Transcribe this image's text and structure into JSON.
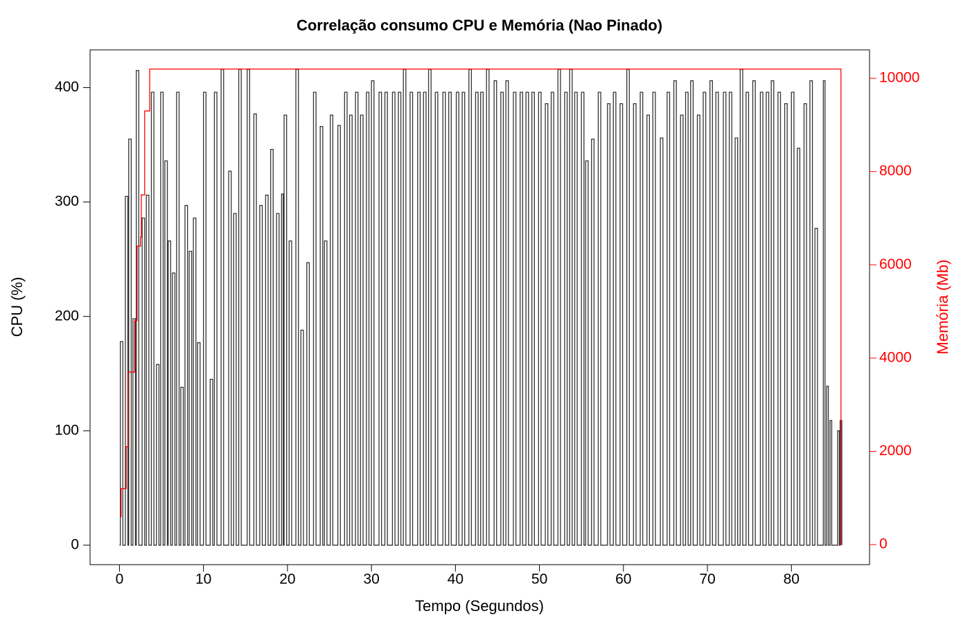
{
  "chart_data": {
    "type": "line",
    "title": "Correlação consumo CPU e Memória (Nao Pinado)",
    "xlabel": "Tempo (Segundos)",
    "ylabel": "CPU (%)",
    "y2label": "Memória (Mb)",
    "xlim": [
      -3.5,
      89.3
    ],
    "ylim": [
      -17,
      433
    ],
    "y2lim": [
      -430,
      10610
    ],
    "xticks": [
      0,
      10,
      20,
      30,
      40,
      50,
      60,
      70,
      80
    ],
    "yticks": [
      0,
      100,
      200,
      300,
      400
    ],
    "y2ticks": [
      0,
      2000,
      4000,
      6000,
      8000,
      10000
    ],
    "step": true,
    "series": [
      {
        "name": "CPU",
        "color": "#333333",
        "axis": "y",
        "x": [
          0,
          0.1,
          0.4,
          0.7,
          1.0,
          1.1,
          1.4,
          1.6,
          1.9,
          2.0,
          2.3,
          2.7,
          3.0,
          3.2,
          3.5,
          3.8,
          4.1,
          4.4,
          4.7,
          4.9,
          5.2,
          5.4,
          5.7,
          5.8,
          6.1,
          6.3,
          6.6,
          6.8,
          7.1,
          7.3,
          7.6,
          7.8,
          8.1,
          8.3,
          8.6,
          8.8,
          9.1,
          9.3,
          9.6,
          10.0,
          10.3,
          10.8,
          11.1,
          11.3,
          11.6,
          12.1,
          12.4,
          13.0,
          13.3,
          13.6,
          13.9,
          14.2,
          14.5,
          15.2,
          15.5,
          16.0,
          16.3,
          16.7,
          17.0,
          17.4,
          17.7,
          18.0,
          18.3,
          18.7,
          19.0,
          19.3,
          19.5,
          19.6,
          19.9,
          20.2,
          20.5,
          21.0,
          21.3,
          21.6,
          21.9,
          22.3,
          22.6,
          23.1,
          23.4,
          23.9,
          24.2,
          24.4,
          24.7,
          25.1,
          25.4,
          26.0,
          26.3,
          26.8,
          27.1,
          27.4,
          27.7,
          28.1,
          28.4,
          28.7,
          29.0,
          29.4,
          29.7,
          30.0,
          30.3,
          30.9,
          31.2,
          31.6,
          31.9,
          32.5,
          32.8,
          33.2,
          33.5,
          33.8,
          34.1,
          34.6,
          34.9,
          35.5,
          35.8,
          36.2,
          36.5,
          36.8,
          37.1,
          37.6,
          37.9,
          38.5,
          38.8,
          39.2,
          39.5,
          40.1,
          40.4,
          40.8,
          41.1,
          41.6,
          41.9,
          42.4,
          42.7,
          43.0,
          43.3,
          43.7,
          44.0,
          44.6,
          44.9,
          45.4,
          45.7,
          46.0,
          46.3,
          46.9,
          47.2,
          47.7,
          48.0,
          48.4,
          48.7,
          49.1,
          49.4,
          49.9,
          50.2,
          50.7,
          51.0,
          51.4,
          51.7,
          52.2,
          52.5,
          53.0,
          53.3,
          53.6,
          53.9,
          54.2,
          54.5,
          55.0,
          55.3,
          55.5,
          55.8,
          56.2,
          56.5,
          57.0,
          57.3,
          58.1,
          58.4,
          58.8,
          59.1,
          59.6,
          59.9,
          60.4,
          60.7,
          61.2,
          61.5,
          62.0,
          62.3,
          62.8,
          63.1,
          63.5,
          63.8,
          64.4,
          64.7,
          65.2,
          65.5,
          66.0,
          66.3,
          66.8,
          67.1,
          67.4,
          67.7,
          68.0,
          68.3,
          68.8,
          69.1,
          69.5,
          69.8,
          70.3,
          70.6,
          71.0,
          71.3,
          71.9,
          72.2,
          72.6,
          72.9,
          73.3,
          73.6,
          73.9,
          74.2,
          74.6,
          74.9,
          75.4,
          75.7,
          76.3,
          76.6,
          77.0,
          77.3,
          77.6,
          77.9,
          78.4,
          78.7,
          79.2,
          79.5,
          80.0,
          80.3,
          80.7,
          81.0,
          81.5,
          81.8,
          82.2,
          82.5,
          82.8,
          83.1,
          83.8,
          84.0,
          84.2,
          84.4,
          84.6,
          84.8,
          85.5,
          85.7,
          85.8,
          86.0
        ],
        "values": [
          0,
          178,
          0,
          305,
          0,
          355,
          0,
          198,
          0,
          415,
          0,
          286,
          0,
          306,
          0,
          396,
          0,
          158,
          0,
          396,
          0,
          336,
          0,
          266,
          0,
          238,
          0,
          396,
          0,
          138,
          0,
          297,
          0,
          257,
          0,
          286,
          0,
          177,
          0,
          396,
          0,
          145,
          0,
          396,
          0,
          416,
          0,
          327,
          0,
          290,
          0,
          416,
          0,
          416,
          0,
          377,
          0,
          297,
          0,
          306,
          0,
          346,
          0,
          290,
          0,
          307,
          0,
          376,
          0,
          266,
          0,
          416,
          0,
          188,
          0,
          247,
          0,
          396,
          0,
          366,
          0,
          266,
          0,
          376,
          0,
          367,
          0,
          396,
          0,
          376,
          0,
          396,
          0,
          376,
          0,
          396,
          0,
          406,
          0,
          396,
          0,
          396,
          0,
          396,
          0,
          396,
          0,
          416,
          0,
          396,
          0,
          396,
          0,
          396,
          0,
          416,
          0,
          396,
          0,
          396,
          0,
          396,
          0,
          396,
          0,
          396,
          0,
          416,
          0,
          396,
          0,
          396,
          0,
          416,
          0,
          406,
          0,
          396,
          0,
          406,
          0,
          396,
          0,
          396,
          0,
          396,
          0,
          396,
          0,
          396,
          0,
          386,
          0,
          396,
          0,
          416,
          0,
          396,
          0,
          416,
          0,
          396,
          0,
          396,
          0,
          336,
          0,
          355,
          0,
          396,
          0,
          386,
          0,
          396,
          0,
          386,
          0,
          416,
          0,
          386,
          0,
          396,
          0,
          376,
          0,
          396,
          0,
          356,
          0,
          396,
          0,
          406,
          0,
          376,
          0,
          396,
          0,
          406,
          0,
          376,
          0,
          396,
          0,
          406,
          0,
          396,
          0,
          396,
          0,
          396,
          0,
          356,
          0,
          416,
          0,
          396,
          0,
          406,
          0,
          396,
          0,
          396,
          0,
          406,
          0,
          396,
          0,
          386,
          0,
          396,
          0,
          347,
          0,
          386,
          0,
          406,
          0,
          277,
          0,
          406,
          0,
          139,
          0,
          109,
          0,
          100,
          0,
          109,
          0
        ]
      },
      {
        "name": "Memória",
        "color": "#ff0000",
        "axis": "y2",
        "x": [
          0.1,
          0.2,
          0.8,
          1.0,
          1.8,
          2.1,
          2.5,
          2.6,
          3.0,
          3.6,
          85.9,
          86.0
        ],
        "values": [
          600,
          1200,
          2100,
          3700,
          4800,
          6400,
          6600,
          7500,
          9300,
          10200,
          0,
          0
        ]
      }
    ]
  }
}
